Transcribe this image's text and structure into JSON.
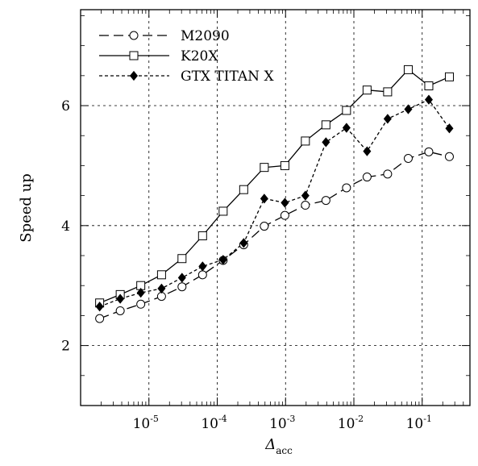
{
  "chart_data": {
    "type": "line",
    "xscale": "log",
    "xlim": [
      1e-06,
      0.5
    ],
    "ylim": [
      1,
      7.6
    ],
    "xlabel": {
      "symbol": "Δ",
      "subscript": "acc"
    },
    "ylabel": "Speed up",
    "x_ticks": [
      {
        "base": "10",
        "exp": "-5",
        "value": 1e-05
      },
      {
        "base": "10",
        "exp": "-4",
        "value": 0.0001
      },
      {
        "base": "10",
        "exp": "-3",
        "value": 0.001
      },
      {
        "base": "10",
        "exp": "-2",
        "value": 0.01
      },
      {
        "base": "10",
        "exp": "-1",
        "value": 0.1
      }
    ],
    "y_ticks": [
      {
        "label": "2",
        "value": 2
      },
      {
        "label": "4",
        "value": 4
      },
      {
        "label": "6",
        "value": 6
      }
    ],
    "grid": true,
    "legend_position": "top-left",
    "x": [
      1.9e-06,
      3.8e-06,
      7.6e-06,
      1.53e-05,
      3.05e-05,
      6.1e-05,
      0.000122,
      0.000244,
      0.000488,
      0.000977,
      0.00195,
      0.0039,
      0.0078,
      0.0156,
      0.0312,
      0.0625,
      0.125,
      0.25
    ],
    "series": [
      {
        "name": "M2090",
        "line": "dashed",
        "marker": "circle-open",
        "color": "#000000",
        "values": [
          2.45,
          2.58,
          2.69,
          2.82,
          2.98,
          3.18,
          3.42,
          3.68,
          3.99,
          4.17,
          4.34,
          4.42,
          4.63,
          4.81,
          4.86,
          5.12,
          5.23,
          5.15
        ]
      },
      {
        "name": "K20X",
        "line": "solid",
        "marker": "square-open",
        "color": "#000000",
        "values": [
          2.71,
          2.85,
          3.0,
          3.18,
          3.45,
          3.83,
          4.24,
          4.6,
          4.97,
          5.0,
          5.41,
          5.68,
          5.92,
          6.26,
          6.23,
          6.6,
          6.33,
          6.48
        ]
      },
      {
        "name": "GTX TITAN X",
        "line": "dotted",
        "marker": "diamond-filled",
        "color": "#000000",
        "values": [
          2.65,
          2.78,
          2.88,
          2.95,
          3.13,
          3.32,
          3.43,
          3.71,
          4.45,
          4.38,
          4.5,
          5.39,
          5.63,
          5.24,
          5.78,
          5.94,
          6.1,
          5.62
        ]
      }
    ]
  }
}
